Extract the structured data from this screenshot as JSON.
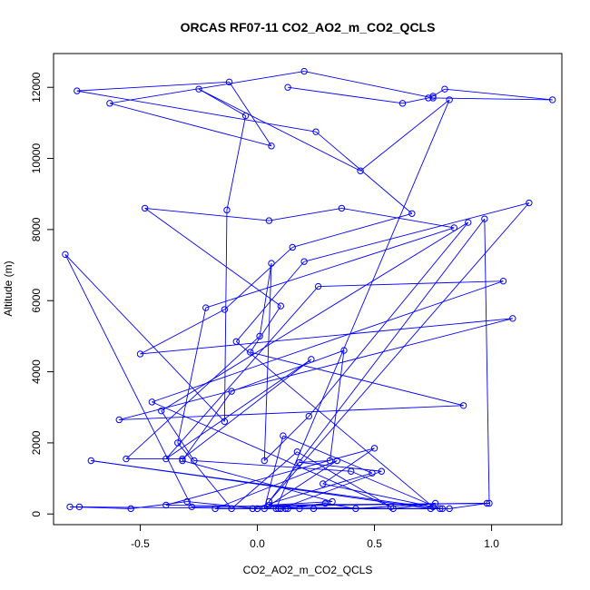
{
  "chart_data": {
    "type": "line",
    "title": "ORCAS RF07-11 CO2_AO2_m_CO2_QCLS",
    "xlabel": "CO2_AO2_m_CO2_QCLS",
    "ylabel": "Altitude (m)",
    "xlim": [
      -0.87,
      1.3
    ],
    "ylim": [
      -300,
      12950
    ],
    "xticks": [
      -0.5,
      0.0,
      0.5,
      1.0
    ],
    "xtick_labels": [
      "-0.5",
      "0.0",
      "0.5",
      "1.0"
    ],
    "yticks": [
      0,
      2000,
      4000,
      6000,
      8000,
      10000,
      12000
    ],
    "ytick_labels": [
      "0",
      "2000",
      "4000",
      "6000",
      "8000",
      "10000",
      "12000"
    ],
    "grid": false,
    "legend": "none",
    "markers": "open-circle",
    "color": "#0000ff",
    "series": [
      {
        "x": [
          0.13,
          0.62,
          0.73,
          0.75,
          0.8,
          1.26,
          0.75,
          0.2,
          -0.63,
          0.06,
          -0.12,
          -0.77,
          0.25,
          0.66,
          0.15,
          -0.14,
          -0.5,
          1.09,
          -0.59,
          0.88,
          -0.03,
          0.1,
          -0.48,
          0.05,
          0.36,
          0.84,
          -0.22,
          -0.34,
          -0.11,
          0.17,
          0.57,
          -0.45,
          1.05,
          0.26,
          -0.39,
          0.23,
          -0.32,
          -0.56,
          0.01,
          0.06,
          0.03,
          0.22,
          0.9,
          -0.41,
          -0.27,
          0.4,
          0.78,
          -0.71,
          0.74,
          0.18,
          0.09,
          0.12,
          0.29,
          0.42,
          0.76,
          0.58,
          -0.39,
          0.5,
          0.28,
          0.75,
          -0.09,
          0.2,
          1.16,
          0.05,
          0.97,
          0.99,
          -0.28,
          -0.82,
          -0.14,
          -0.13,
          -0.05,
          -0.25,
          0.44,
          0.82,
          0.08,
          -0.76,
          -0.8,
          -0.54,
          -0.3,
          0.0,
          0.13,
          0.24,
          0.82,
          0.98,
          0.05,
          0.32,
          -0.32,
          -0.11,
          0.37,
          0.31,
          0.18,
          0.53,
          0.1,
          -0.18,
          0.34,
          0.03,
          0.11,
          0.49,
          -0.02,
          0.79
        ],
        "y": [
          12000,
          11550,
          11700,
          11750,
          11950,
          11650,
          11700,
          12450,
          11550,
          10350,
          12150,
          11900,
          10750,
          8450,
          7500,
          5750,
          4500,
          5500,
          2650,
          3050,
          4550,
          5850,
          8600,
          8250,
          8600,
          8050,
          5800,
          2000,
          150,
          1750,
          200,
          3150,
          6550,
          6400,
          1550,
          4350,
          1550,
          1550,
          5000,
          7050,
          1500,
          2750,
          8200,
          2900,
          1500,
          1200,
          150,
          1500,
          150,
          150,
          150,
          150,
          300,
          150,
          300,
          150,
          250,
          1850,
          850,
          200,
          4850,
          7100,
          8750,
          350,
          8300,
          300,
          200,
          7300,
          2600,
          8550,
          11200,
          11950,
          9650,
          11650,
          150,
          200,
          200,
          150,
          350,
          150,
          150,
          150,
          150,
          300,
          250,
          350,
          1500,
          3450,
          4600,
          1500,
          1450,
          1200,
          150,
          150,
          1500,
          150,
          2200,
          1150,
          150,
          150
        ]
      }
    ]
  }
}
